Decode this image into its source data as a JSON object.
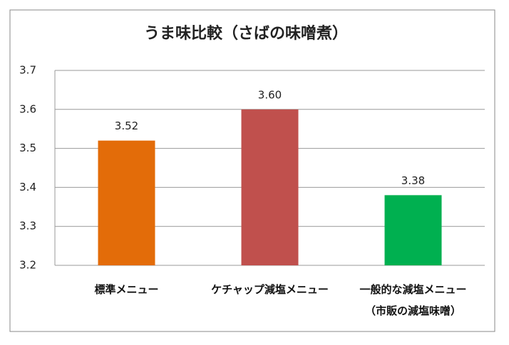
{
  "chart_data": {
    "type": "bar",
    "title": "うま味比較（さばの味噌煮）",
    "categories": [
      "標準メニュー",
      "ケチャップ減塩メニュー",
      "一般的な減塩メニュー\n（市販の減塩味噌）"
    ],
    "values": [
      3.52,
      3.6,
      3.38
    ],
    "value_labels": [
      "3.52",
      "3.60",
      "3.38"
    ],
    "colors": [
      "#e36c09",
      "#c0504d",
      "#00b050"
    ],
    "ylim": [
      3.2,
      3.7
    ],
    "yticks": [
      3.2,
      3.3,
      3.4,
      3.5,
      3.6,
      3.7
    ],
    "grid": true
  }
}
